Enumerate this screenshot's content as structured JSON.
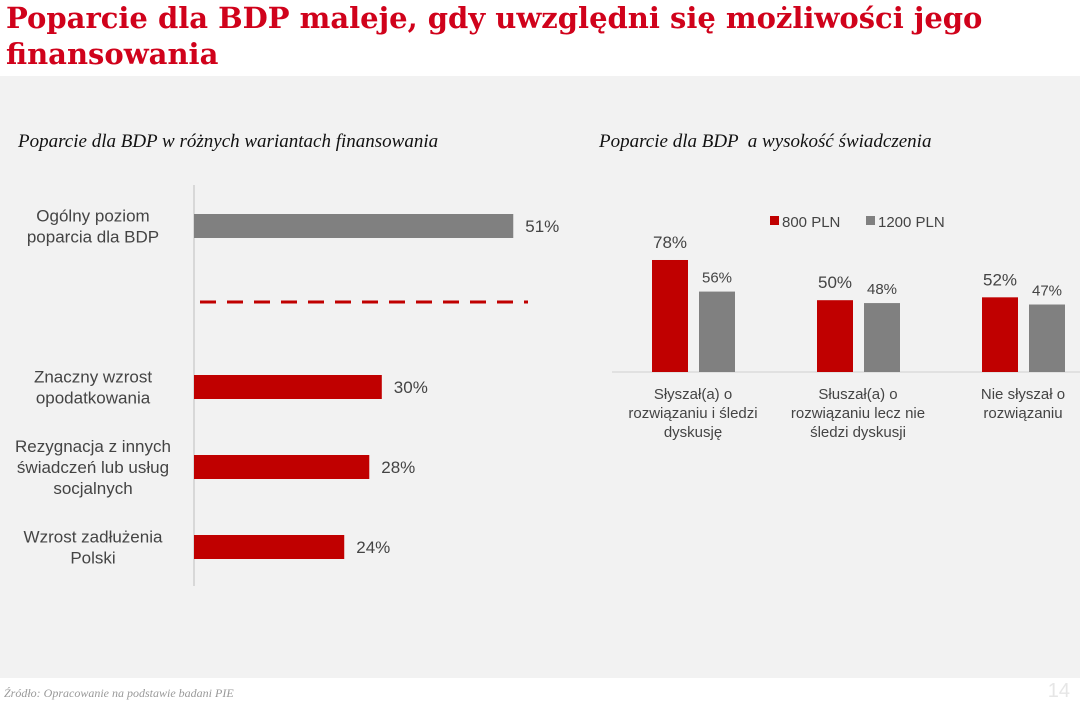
{
  "title": "Poparcie dla BDP maleje, gdy uwzględni się możliwości jego finansowania",
  "source": "Źródło: Opracowanie na podstawie badani PIE",
  "page_number": "14",
  "colors": {
    "red": "#c00000",
    "grey": "#808080",
    "title": "#d0021b"
  },
  "chart_data": [
    {
      "type": "bar",
      "orientation": "horizontal",
      "title": "Poparcie dla BDP w różnych wariantach finansowania",
      "categories": [
        [
          "Ogólny poziom",
          "poparcia dla BDP"
        ],
        [
          "Znaczny wzrost",
          "opodatkowania"
        ],
        [
          "Rezygnacja z innych",
          "świadczeń lub usług",
          "socjalnych"
        ],
        [
          "Wzrost zadłużenia",
          "Polski"
        ]
      ],
      "values": [
        51,
        30,
        28,
        24
      ],
      "labels": [
        "51%",
        "30%",
        "28%",
        "24%"
      ],
      "bar_colors": [
        "#808080",
        "#c00000",
        "#c00000",
        "#c00000"
      ],
      "separator": "dashed red line between first and remaining bars",
      "xlim": [
        0,
        100
      ],
      "grid": false
    },
    {
      "type": "bar",
      "title": "Poparcie dla BDP  a wysokość świadczenia",
      "categories": [
        [
          "Słyszał(a) o",
          "rozwiązaniu i śledzi",
          "dyskusję"
        ],
        [
          "Słuszał(a) o",
          "rozwiązaniu lecz nie",
          "śledzi dyskusji"
        ],
        [
          "Nie słyszał o",
          "rozwiązaniu"
        ]
      ],
      "series": [
        {
          "name": "800 PLN",
          "values": [
            78,
            50,
            52
          ],
          "labels": [
            "78%",
            "50%",
            "52%"
          ],
          "color": "#c00000"
        },
        {
          "name": "1200 PLN",
          "values": [
            56,
            48,
            47
          ],
          "labels": [
            "56%",
            "48%",
            "47%"
          ],
          "color": "#808080"
        }
      ],
      "legend": "top",
      "ylim": [
        0,
        100
      ],
      "grid": false
    }
  ]
}
